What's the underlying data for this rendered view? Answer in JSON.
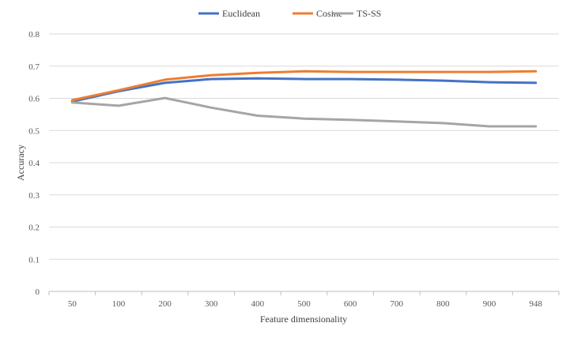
{
  "chart_data": {
    "type": "line",
    "title": "",
    "xlabel": "Feature dimensionality",
    "ylabel": "Accuracy",
    "categories": [
      "50",
      "100",
      "200",
      "300",
      "400",
      "500",
      "600",
      "700",
      "800",
      "900",
      "948"
    ],
    "ylim": [
      0,
      0.8
    ],
    "yticks": [
      "0",
      "0.1",
      "0.2",
      "0.3",
      "0.4",
      "0.5",
      "0.6",
      "0.7",
      "0.8"
    ],
    "grid": "horizontal",
    "legend_position": "top",
    "series": [
      {
        "name": "Euclidean",
        "color": "#4472C4",
        "values": [
          0.59,
          0.622,
          0.648,
          0.66,
          0.662,
          0.66,
          0.66,
          0.658,
          0.655,
          0.65,
          0.648
        ]
      },
      {
        "name": "Cosine",
        "color": "#ED7D31",
        "values": [
          0.594,
          0.625,
          0.658,
          0.672,
          0.679,
          0.684,
          0.682,
          0.682,
          0.682,
          0.682,
          0.684
        ]
      },
      {
        "name": "TS-SS",
        "color": "#A5A5A5",
        "values": [
          0.587,
          0.577,
          0.601,
          0.571,
          0.546,
          0.537,
          0.533,
          0.528,
          0.523,
          0.513,
          0.513
        ]
      }
    ]
  }
}
